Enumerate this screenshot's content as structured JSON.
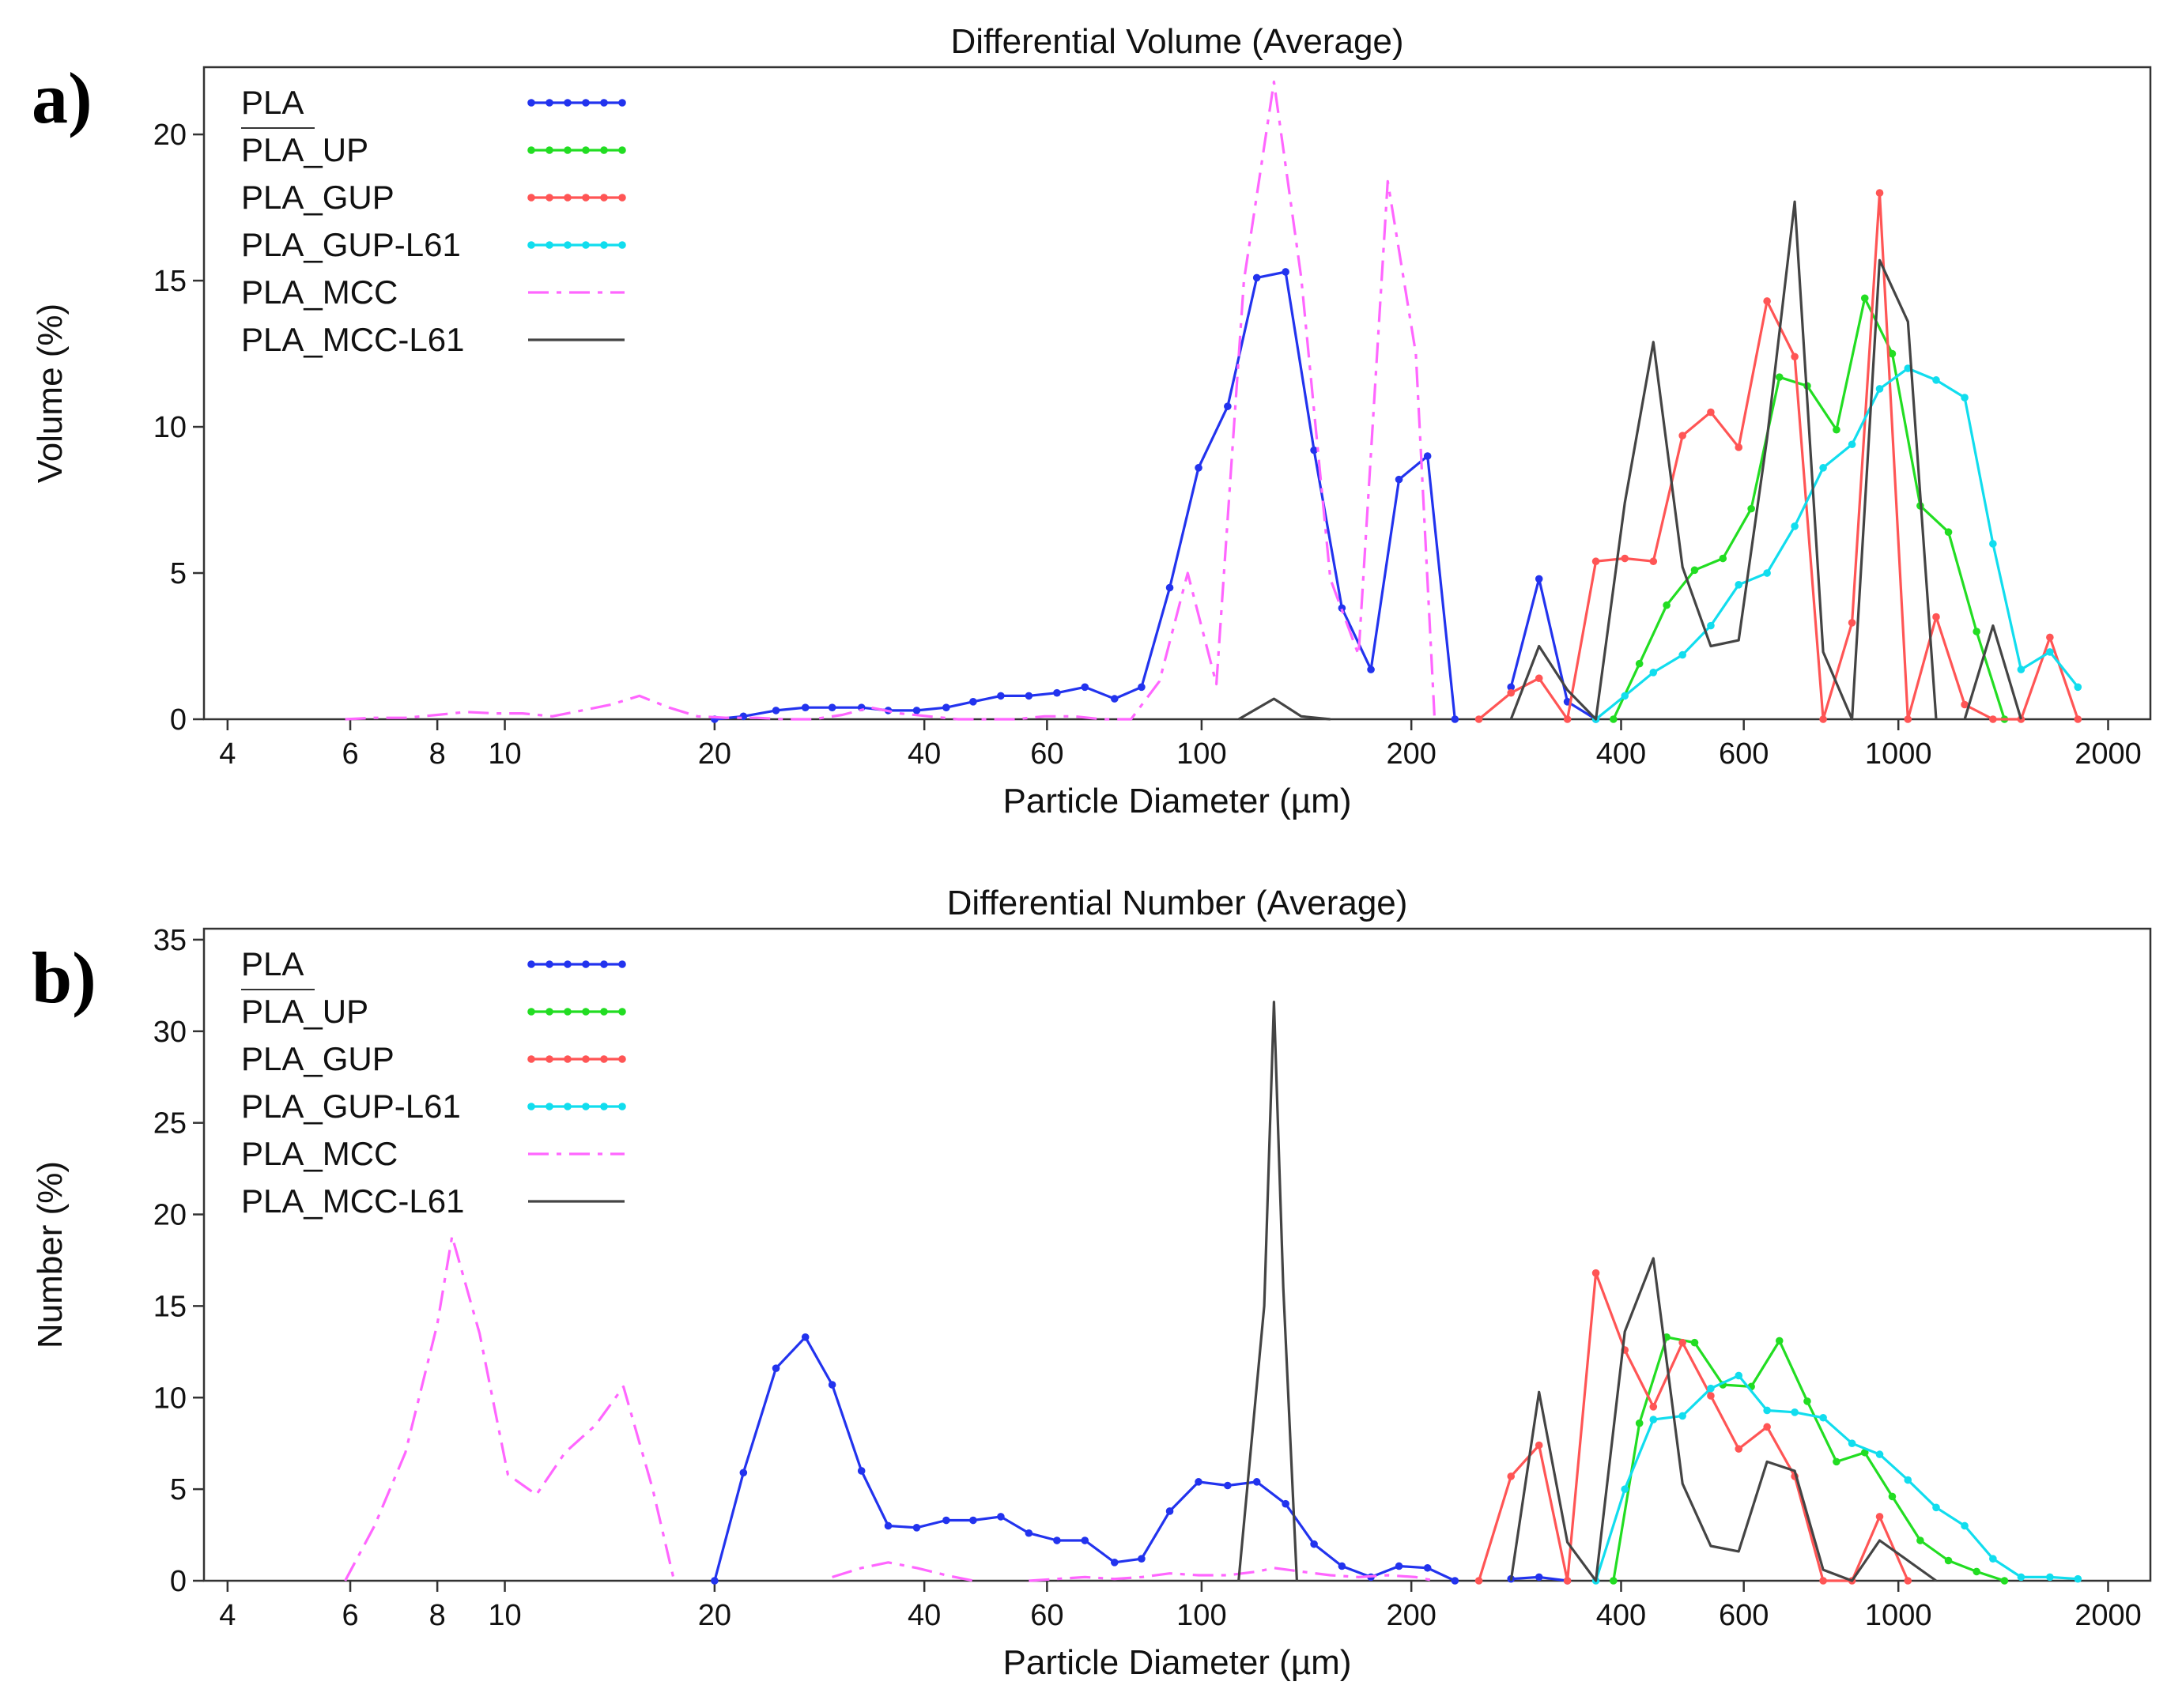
{
  "panel_labels": [
    "a)",
    "b)"
  ],
  "series_styles": [
    {
      "name": "PLA",
      "color": "#2233ee",
      "dash": "",
      "markers": true
    },
    {
      "name": "PLA_UP",
      "color": "#22dd22",
      "dash": "",
      "markers": true
    },
    {
      "name": "PLA_GUP",
      "color": "#ff5555",
      "dash": "",
      "markers": true
    },
    {
      "name": "PLA_GUP-L61",
      "color": "#11ddee",
      "dash": "",
      "markers": true
    },
    {
      "name": "PLA_MCC",
      "color": "#ff66ff",
      "dash": "26,10,6,10",
      "markers": false
    },
    {
      "name": "PLA_MCC-L61",
      "color": "#444444",
      "dash": "",
      "markers": false
    }
  ],
  "chart_data": [
    {
      "type": "line",
      "title": "Differential Volume (Average)",
      "xlabel": "Particle Diameter (µm)",
      "ylabel": "Volume (%)",
      "xscale": "log",
      "xlim": [
        3.7,
        2300
      ],
      "ylim": [
        0,
        22.3
      ],
      "xticks": [
        4,
        6,
        8,
        10,
        20,
        40,
        60,
        100,
        200,
        400,
        600,
        1000,
        2000
      ],
      "yticks": [
        0,
        5,
        10,
        15,
        20
      ],
      "legend": [
        "PLA",
        "PLA_UP",
        "PLA_GUP",
        "PLA_GUP-L61",
        "PLA_MCC",
        "PLA_MCC-L61"
      ],
      "legend_position": "top-left",
      "series": [
        {
          "name": "PLA",
          "x": [
            20,
            22,
            24.5,
            27,
            29.5,
            32.5,
            35.5,
            39,
            43,
            47,
            51.5,
            56.5,
            62,
            68,
            75,
            82,
            90,
            99,
            109,
            120,
            132,
            145,
            159,
            175,
            192,
            211,
            231
          ],
          "y": [
            0,
            0.1,
            0.3,
            0.4,
            0.4,
            0.4,
            0.3,
            0.3,
            0.4,
            0.6,
            0.8,
            0.8,
            0.9,
            1.1,
            0.7,
            1.1,
            4.5,
            8.6,
            10.7,
            15.1,
            15.3,
            9.2,
            3.8,
            1.7,
            8.2,
            9.0,
            0
          ]
        },
        {
          "name": "PLA",
          "x": [
            278,
            305,
            335,
            368
          ],
          "y": [
            1.1,
            4.8,
            0.6,
            0
          ]
        },
        {
          "name": "PLA_UP",
          "x": [
            390,
            425,
            465,
            510,
            560,
            615,
            675,
            740,
            815,
            895,
            980,
            1075,
            1180,
            1295,
            1420
          ],
          "y": [
            0,
            1.9,
            3.9,
            5.1,
            5.5,
            7.2,
            11.7,
            11.4,
            9.9,
            14.4,
            12.5,
            7.3,
            6.4,
            3.0,
            0
          ]
        },
        {
          "name": "PLA_GUP",
          "x": [
            250,
            278,
            305,
            335,
            368,
            405,
            445,
            490,
            538,
            590,
            648,
            710,
            780,
            858,
            940,
            1032,
            1133,
            1245,
            1367,
            1500,
            1650,
            1810
          ],
          "y": [
            0,
            0.9,
            1.4,
            0,
            5.4,
            5.5,
            5.4,
            9.7,
            10.5,
            9.3,
            14.3,
            12.4,
            0,
            3.3,
            18.0,
            0,
            3.5,
            0.5,
            0,
            0,
            2.8,
            0
          ]
        },
        {
          "name": "PLA_GUP-L61",
          "x": [
            368,
            405,
            445,
            490,
            538,
            590,
            648,
            710,
            780,
            858,
            940,
            1032,
            1133,
            1245,
            1367,
            1500,
            1650,
            1810
          ],
          "y": [
            0,
            0.8,
            1.6,
            2.2,
            3.2,
            4.6,
            5.0,
            6.6,
            8.6,
            9.4,
            11.3,
            12.0,
            11.6,
            11.0,
            6.0,
            1.7,
            2.3,
            1.1
          ]
        },
        {
          "name": "PLA_MCC",
          "x": [
            5.9,
            6.5,
            7.2,
            8,
            8.8,
            9.7,
            10.6,
            11.7,
            12.9,
            14.2,
            15.6,
            17.2,
            18.9,
            20.8,
            23,
            25.2,
            27.7,
            30.5,
            33.5,
            36.9,
            40.6,
            44.7,
            49.2,
            54.1,
            59.5,
            65.5,
            72,
            79.2,
            87,
            95.5,
            105,
            115,
            127,
            139,
            153,
            168,
            185,
            203,
            216
          ],
          "y": [
            0,
            0.05,
            0.05,
            0.15,
            0.25,
            0.2,
            0.2,
            0.1,
            0.3,
            0.5,
            0.8,
            0.4,
            0.1,
            0.05,
            0.05,
            0,
            0,
            0.15,
            0.4,
            0.2,
            0.1,
            0,
            0,
            0,
            0.1,
            0.1,
            0,
            0,
            1.3,
            5.0,
            1.2,
            15.0,
            21.8,
            15.1,
            4.8,
            2.2,
            18.4,
            12.5,
            0
          ]
        },
        {
          "name": "PLA_MCC-L61",
          "x": [
            113,
            127,
            139,
            153
          ],
          "y": [
            0,
            0.7,
            0.1,
            0
          ]
        },
        {
          "name": "PLA_MCC-L61",
          "x": [
            278,
            305,
            335,
            368,
            405,
            445,
            490,
            538,
            590,
            648,
            710,
            780,
            858,
            940,
            1032,
            1133
          ],
          "y": [
            0,
            2.5,
            1.0,
            0,
            7.4,
            12.9,
            5.2,
            2.5,
            2.7,
            9.6,
            17.7,
            2.3,
            0,
            15.7,
            13.6,
            0
          ]
        },
        {
          "name": "PLA_MCC-L61",
          "x": [
            1245,
            1367,
            1500
          ],
          "y": [
            0,
            3.2,
            0
          ]
        }
      ]
    },
    {
      "type": "line",
      "title": "Differential Number (Average)",
      "xlabel": "Particle Diameter (µm)",
      "ylabel": "Number (%)",
      "xscale": "log",
      "xlim": [
        3.7,
        2300
      ],
      "ylim": [
        0,
        35.6
      ],
      "xticks": [
        4,
        6,
        8,
        10,
        20,
        40,
        60,
        100,
        200,
        400,
        600,
        1000,
        2000
      ],
      "yticks": [
        0,
        5,
        10,
        15,
        20,
        25,
        30,
        35
      ],
      "legend": [
        "PLA",
        "PLA_UP",
        "PLA_GUP",
        "PLA_GUP-L61",
        "PLA_MCC",
        "PLA_MCC-L61"
      ],
      "legend_position": "top-left",
      "series": [
        {
          "name": "PLA",
          "x": [
            20,
            22,
            24.5,
            27,
            29.5,
            32.5,
            35.5,
            39,
            43,
            47,
            51.5,
            56.5,
            62,
            68,
            75,
            82,
            90,
            99,
            109,
            120,
            132,
            145,
            159,
            175,
            192,
            211,
            231
          ],
          "y": [
            0,
            5.9,
            11.6,
            13.3,
            10.7,
            6.0,
            3.0,
            2.9,
            3.3,
            3.3,
            3.5,
            2.6,
            2.2,
            2.2,
            1.0,
            1.2,
            3.8,
            5.4,
            5.2,
            5.4,
            4.2,
            2.0,
            0.8,
            0.2,
            0.8,
            0.7,
            0
          ]
        },
        {
          "name": "PLA",
          "x": [
            278,
            305,
            335
          ],
          "y": [
            0.1,
            0.2,
            0
          ]
        },
        {
          "name": "PLA_UP",
          "x": [
            390,
            425,
            465,
            510,
            560,
            615,
            675,
            740,
            815,
            895,
            980,
            1075,
            1180,
            1295,
            1420
          ],
          "y": [
            0,
            8.6,
            13.3,
            13.0,
            10.7,
            10.6,
            13.1,
            9.8,
            6.5,
            7.0,
            4.6,
            2.2,
            1.1,
            0.5,
            0
          ]
        },
        {
          "name": "PLA_GUP",
          "x": [
            250,
            278,
            305,
            335,
            368,
            405,
            445,
            490,
            538,
            590,
            648,
            710,
            780,
            858,
            940,
            1032
          ],
          "y": [
            0,
            5.7,
            7.4,
            0,
            16.8,
            12.6,
            9.5,
            13.0,
            10.1,
            7.2,
            8.4,
            5.7,
            0,
            0,
            3.5,
            0
          ]
        },
        {
          "name": "PLA_GUP-L61",
          "x": [
            368,
            405,
            445,
            490,
            538,
            590,
            648,
            710,
            780,
            858,
            940,
            1032,
            1133,
            1245,
            1367,
            1500,
            1650,
            1810
          ],
          "y": [
            0,
            5.0,
            8.8,
            9.0,
            10.5,
            11.2,
            9.3,
            9.2,
            8.9,
            7.5,
            6.9,
            5.5,
            4.0,
            3.0,
            1.2,
            0.2,
            0.2,
            0.1
          ]
        },
        {
          "name": "PLA_MCC",
          "x": [
            5.9,
            6.5,
            7.2,
            8,
            8.4,
            9.2,
            10.1,
            11.1,
            12.2,
            13.5,
            14.8,
            16.3,
            17.5
          ],
          "y": [
            0,
            3.0,
            7.0,
            14.0,
            18.8,
            13.5,
            5.8,
            4.7,
            7.0,
            8.5,
            10.6,
            5.0,
            0
          ]
        },
        {
          "name": "PLA_MCC",
          "x": [
            29.5,
            32.5,
            35.5,
            39,
            43,
            47
          ],
          "y": [
            0.2,
            0.7,
            1.0,
            0.7,
            0.3,
            0
          ]
        },
        {
          "name": "PLA_MCC",
          "x": [
            56.5,
            62,
            68,
            75,
            82,
            90,
            99,
            109,
            120,
            127,
            139,
            153,
            168,
            185,
            203,
            216
          ],
          "y": [
            0,
            0.1,
            0.2,
            0.1,
            0.2,
            0.4,
            0.3,
            0.3,
            0.5,
            0.7,
            0.5,
            0.3,
            0.2,
            0.3,
            0.2,
            0
          ]
        },
        {
          "name": "PLA_MCC-L61",
          "x": [
            113,
            123,
            127,
            131,
            137
          ],
          "y": [
            0,
            15.0,
            31.6,
            16.0,
            0
          ]
        },
        {
          "name": "PLA_MCC-L61",
          "x": [
            278,
            305,
            335,
            368,
            405,
            445,
            490,
            538,
            590,
            648,
            710,
            780,
            858,
            940,
            1032,
            1133
          ],
          "y": [
            0,
            10.3,
            2.1,
            0,
            13.6,
            17.6,
            5.3,
            1.9,
            1.6,
            6.5,
            6.0,
            0.6,
            0,
            2.2,
            1.1,
            0
          ]
        }
      ]
    }
  ]
}
